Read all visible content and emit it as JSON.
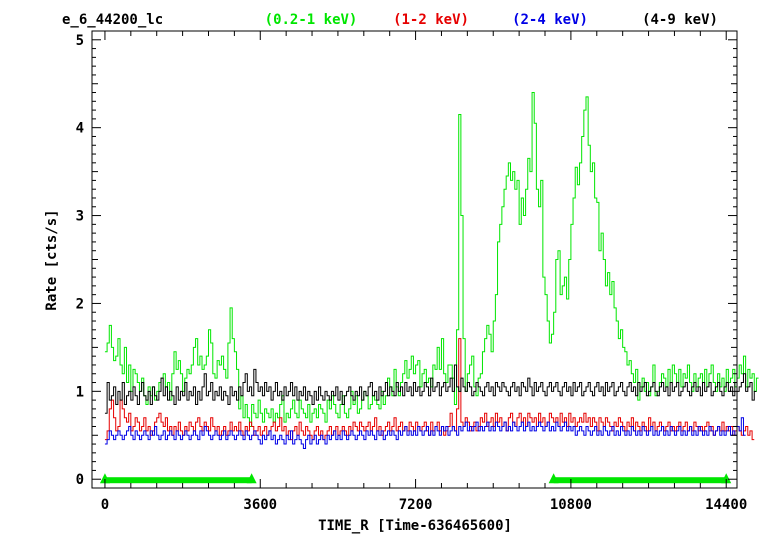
{
  "chart_data": {
    "type": "line",
    "title": "e_6_44200_lc",
    "xlabel": "TIME_R [Time-636465600]",
    "ylabel": "Rate [cts/s]",
    "xlim": [
      -300,
      14650
    ],
    "ylim": [
      -0.1,
      5.1
    ],
    "xticks": [
      0,
      3600,
      7200,
      10800,
      14400
    ],
    "xtick_labels": [
      "0",
      "3600",
      "7200",
      "10800",
      "14400"
    ],
    "yticks": [
      0,
      1,
      2,
      3,
      4,
      5
    ],
    "ytick_labels": [
      "0",
      "1",
      "2",
      "3",
      "4",
      "5"
    ],
    "grid": false,
    "legend_position": "top",
    "series": [
      {
        "name": "(0.2-1 keV)",
        "color": "#00e600",
        "step": 50,
        "values": [
          1.45,
          1.55,
          1.75,
          1.5,
          1.35,
          1.4,
          1.6,
          1.3,
          1.2,
          1.5,
          1.1,
          1.3,
          1.0,
          1.25,
          1.2,
          1.1,
          1.0,
          1.15,
          0.95,
          0.85,
          1.05,
          0.95,
          1.05,
          0.9,
          1.0,
          1.1,
          1.15,
          1.2,
          1.05,
          1.1,
          0.9,
          1.2,
          1.45,
          1.25,
          1.35,
          1.2,
          1.0,
          1.15,
          1.25,
          1.2,
          1.3,
          1.5,
          1.6,
          1.3,
          1.4,
          1.25,
          1.3,
          1.4,
          1.7,
          1.55,
          1.2,
          1.15,
          1.35,
          1.3,
          1.4,
          1.25,
          1.15,
          1.55,
          1.95,
          1.6,
          1.45,
          1.25,
          0.8,
          0.95,
          0.7,
          0.85,
          0.7,
          0.6,
          0.85,
          0.75,
          0.7,
          0.9,
          0.75,
          0.65,
          0.8,
          0.75,
          0.7,
          0.8,
          0.65,
          0.75,
          0.7,
          0.85,
          0.95,
          0.65,
          0.75,
          0.7,
          0.8,
          0.9,
          0.75,
          0.7,
          0.9,
          0.8,
          0.75,
          0.7,
          0.85,
          0.65,
          0.75,
          0.8,
          0.7,
          0.85,
          0.8,
          0.75,
          0.65,
          0.9,
          0.8,
          0.95,
          0.85,
          0.75,
          0.7,
          0.85,
          0.95,
          0.75,
          0.7,
          0.8,
          1.0,
          0.85,
          0.95,
          0.75,
          0.8,
          0.9,
          1.0,
          0.95,
          0.8,
          0.85,
          0.95,
          0.9,
          0.85,
          0.8,
          1.0,
          0.85,
          0.95,
          1.15,
          1.05,
          0.95,
          1.25,
          1.05,
          0.95,
          1.1,
          1.2,
          1.35,
          1.15,
          1.25,
          1.4,
          1.2,
          1.3,
          1.35,
          1.05,
          1.2,
          1.25,
          1.1,
          1.15,
          1.05,
          1.3,
          1.25,
          1.5,
          1.25,
          1.6,
          1.2,
          1.1,
          1.3,
          1.3,
          1.15,
          0.85,
          1.7,
          4.15,
          3.0,
          1.6,
          1.0,
          1.2,
          1.3,
          1.4,
          1.05,
          0.95,
          1.15,
          1.2,
          1.45,
          1.6,
          1.75,
          1.65,
          1.45,
          1.8,
          2.1,
          2.7,
          2.9,
          3.1,
          3.3,
          3.45,
          3.6,
          3.4,
          3.5,
          3.3,
          3.4,
          2.9,
          3.2,
          3.0,
          3.3,
          3.65,
          3.5,
          4.4,
          4.05,
          3.3,
          3.1,
          3.4,
          2.3,
          2.1,
          1.8,
          1.55,
          1.65,
          1.9,
          2.5,
          2.6,
          2.1,
          2.2,
          2.3,
          2.05,
          2.5,
          2.9,
          3.2,
          3.55,
          3.35,
          3.6,
          3.9,
          4.2,
          4.35,
          3.8,
          3.5,
          3.6,
          3.2,
          3.15,
          2.6,
          2.8,
          2.5,
          2.2,
          2.35,
          2.1,
          2.25,
          1.95,
          1.8,
          1.6,
          1.7,
          1.5,
          1.45,
          1.3,
          1.35,
          1.2,
          1.1,
          1.25,
          0.9,
          1.05,
          1.15,
          1.0,
          1.1,
          0.95,
          1.05,
          1.3,
          0.95,
          1.0,
          1.1,
          1.2,
          1.15,
          1.05,
          1.25,
          1.1,
          1.3,
          1.2,
          1.1,
          1.25,
          1.05,
          1.2,
          1.15,
          1.3,
          1.1,
          1.0,
          1.2,
          1.05,
          1.15,
          1.2,
          1.1,
          1.25,
          1.05,
          1.2,
          1.3,
          1.1,
          1.0,
          1.2,
          1.05,
          1.15,
          1.0,
          1.25,
          1.1,
          1.15,
          1.25,
          1.05,
          1.15,
          1.3,
          1.2,
          1.4,
          1.05,
          1.25,
          1.15,
          1.2,
          1.0,
          1.15
        ]
      },
      {
        "name": "(1-2 keV)",
        "color": "#e60000",
        "step": 50,
        "values": [
          0.45,
          0.55,
          0.8,
          0.9,
          0.7,
          0.55,
          0.6,
          0.9,
          0.8,
          0.7,
          0.65,
          0.75,
          0.55,
          0.6,
          0.7,
          0.65,
          0.55,
          0.6,
          0.7,
          0.55,
          0.6,
          0.5,
          0.55,
          0.65,
          0.7,
          0.75,
          0.65,
          0.6,
          0.7,
          0.55,
          0.6,
          0.5,
          0.6,
          0.55,
          0.65,
          0.55,
          0.5,
          0.6,
          0.55,
          0.65,
          0.6,
          0.55,
          0.65,
          0.7,
          0.6,
          0.55,
          0.65,
          0.6,
          0.55,
          0.7,
          0.6,
          0.55,
          0.6,
          0.5,
          0.55,
          0.6,
          0.5,
          0.55,
          0.65,
          0.55,
          0.6,
          0.55,
          0.65,
          0.55,
          0.5,
          0.6,
          0.55,
          0.65,
          0.6,
          0.5,
          0.55,
          0.6,
          0.5,
          0.55,
          0.6,
          0.5,
          0.55,
          0.6,
          0.65,
          0.55,
          0.6,
          0.7,
          0.55,
          0.6,
          0.5,
          0.55,
          0.45,
          0.55,
          0.6,
          0.5,
          0.65,
          0.55,
          0.5,
          0.6,
          0.55,
          0.5,
          0.45,
          0.55,
          0.6,
          0.5,
          0.55,
          0.45,
          0.5,
          0.55,
          0.6,
          0.5,
          0.55,
          0.6,
          0.5,
          0.55,
          0.6,
          0.55,
          0.5,
          0.6,
          0.55,
          0.65,
          0.6,
          0.55,
          0.65,
          0.6,
          0.55,
          0.6,
          0.65,
          0.55,
          0.6,
          0.7,
          0.55,
          0.6,
          0.5,
          0.55,
          0.6,
          0.65,
          0.55,
          0.6,
          0.7,
          0.55,
          0.6,
          0.65,
          0.55,
          0.6,
          0.55,
          0.65,
          0.6,
          0.55,
          0.65,
          0.6,
          0.55,
          0.6,
          0.65,
          0.55,
          0.5,
          0.65,
          0.55,
          0.6,
          0.65,
          0.55,
          0.6,
          0.5,
          0.55,
          0.6,
          0.75,
          0.6,
          0.55,
          0.8,
          1.6,
          0.65,
          0.6,
          0.7,
          0.65,
          0.55,
          0.6,
          0.65,
          0.55,
          0.6,
          0.7,
          0.65,
          0.75,
          0.6,
          0.65,
          0.7,
          0.6,
          0.75,
          0.65,
          0.7,
          0.6,
          0.65,
          0.55,
          0.7,
          0.75,
          0.65,
          0.6,
          0.7,
          0.75,
          0.65,
          0.7,
          0.6,
          0.75,
          0.7,
          0.65,
          0.7,
          0.6,
          0.75,
          0.65,
          0.7,
          0.6,
          0.65,
          0.75,
          0.7,
          0.65,
          0.7,
          0.6,
          0.75,
          0.65,
          0.7,
          0.6,
          0.75,
          0.65,
          0.7,
          0.6,
          0.65,
          0.7,
          0.65,
          0.75,
          0.65,
          0.7,
          0.6,
          0.7,
          0.65,
          0.55,
          0.7,
          0.65,
          0.6,
          0.7,
          0.65,
          0.6,
          0.55,
          0.65,
          0.6,
          0.7,
          0.65,
          0.6,
          0.55,
          0.65,
          0.6,
          0.7,
          0.55,
          0.65,
          0.6,
          0.55,
          0.65,
          0.6,
          0.55,
          0.7,
          0.6,
          0.65,
          0.55,
          0.6,
          0.65,
          0.6,
          0.55,
          0.6,
          0.65,
          0.55,
          0.6,
          0.55,
          0.6,
          0.65,
          0.55,
          0.6,
          0.65,
          0.55,
          0.6,
          0.55,
          0.65,
          0.6,
          0.55,
          0.6,
          0.55,
          0.6,
          0.65,
          0.55,
          0.6,
          0.5,
          0.55,
          0.6,
          0.55,
          0.65,
          0.55,
          0.6,
          0.55,
          0.6,
          0.5,
          0.55,
          0.6,
          0.55,
          0.5,
          0.55,
          0.6,
          0.5,
          0.55,
          0.45
        ]
      },
      {
        "name": "(2-4 keV)",
        "color": "#0000e6",
        "step": 50,
        "values": [
          0.4,
          0.45,
          0.55,
          0.5,
          0.45,
          0.5,
          0.55,
          0.5,
          0.45,
          0.5,
          0.55,
          0.6,
          0.5,
          0.45,
          0.55,
          0.5,
          0.45,
          0.5,
          0.55,
          0.5,
          0.45,
          0.55,
          0.5,
          0.6,
          0.5,
          0.45,
          0.5,
          0.55,
          0.45,
          0.5,
          0.55,
          0.5,
          0.45,
          0.55,
          0.5,
          0.45,
          0.5,
          0.55,
          0.5,
          0.45,
          0.5,
          0.55,
          0.5,
          0.45,
          0.55,
          0.5,
          0.6,
          0.55,
          0.5,
          0.45,
          0.5,
          0.55,
          0.5,
          0.45,
          0.5,
          0.55,
          0.45,
          0.5,
          0.55,
          0.5,
          0.45,
          0.5,
          0.55,
          0.5,
          0.45,
          0.55,
          0.5,
          0.45,
          0.5,
          0.55,
          0.5,
          0.45,
          0.4,
          0.5,
          0.45,
          0.5,
          0.55,
          0.45,
          0.5,
          0.4,
          0.45,
          0.5,
          0.45,
          0.4,
          0.5,
          0.45,
          0.55,
          0.4,
          0.45,
          0.5,
          0.45,
          0.4,
          0.35,
          0.45,
          0.5,
          0.4,
          0.45,
          0.5,
          0.4,
          0.45,
          0.5,
          0.45,
          0.4,
          0.5,
          0.45,
          0.5,
          0.55,
          0.45,
          0.5,
          0.45,
          0.55,
          0.5,
          0.45,
          0.5,
          0.55,
          0.5,
          0.45,
          0.5,
          0.55,
          0.5,
          0.45,
          0.55,
          0.5,
          0.55,
          0.5,
          0.45,
          0.55,
          0.5,
          0.55,
          0.45,
          0.5,
          0.55,
          0.5,
          0.55,
          0.5,
          0.45,
          0.55,
          0.5,
          0.55,
          0.6,
          0.5,
          0.55,
          0.5,
          0.55,
          0.5,
          0.6,
          0.55,
          0.5,
          0.55,
          0.6,
          0.5,
          0.55,
          0.5,
          0.6,
          0.55,
          0.5,
          0.6,
          0.55,
          0.6,
          0.5,
          0.55,
          0.6,
          0.55,
          0.5,
          0.6,
          0.55,
          0.6,
          0.65,
          0.55,
          0.6,
          0.55,
          0.6,
          0.65,
          0.55,
          0.6,
          0.55,
          0.6,
          0.65,
          0.55,
          0.6,
          0.55,
          0.65,
          0.6,
          0.55,
          0.6,
          0.65,
          0.55,
          0.6,
          0.55,
          0.65,
          0.6,
          0.55,
          0.6,
          0.65,
          0.55,
          0.6,
          0.65,
          0.55,
          0.6,
          0.55,
          0.6,
          0.65,
          0.6,
          0.55,
          0.6,
          0.65,
          0.55,
          0.6,
          0.55,
          0.65,
          0.6,
          0.55,
          0.6,
          0.65,
          0.55,
          0.6,
          0.55,
          0.6,
          0.5,
          0.55,
          0.6,
          0.55,
          0.5,
          0.6,
          0.55,
          0.5,
          0.55,
          0.6,
          0.5,
          0.55,
          0.5,
          0.6,
          0.55,
          0.5,
          0.55,
          0.6,
          0.5,
          0.55,
          0.5,
          0.6,
          0.55,
          0.5,
          0.55,
          0.5,
          0.6,
          0.55,
          0.5,
          0.55,
          0.5,
          0.6,
          0.55,
          0.5,
          0.55,
          0.6,
          0.5,
          0.55,
          0.5,
          0.55,
          0.6,
          0.5,
          0.55,
          0.5,
          0.6,
          0.55,
          0.5,
          0.55,
          0.6,
          0.5,
          0.55,
          0.5,
          0.55,
          0.6,
          0.5,
          0.55,
          0.5,
          0.6,
          0.55,
          0.5,
          0.55,
          0.5,
          0.6,
          0.55,
          0.5,
          0.55,
          0.6,
          0.5,
          0.55,
          0.5,
          0.55,
          0.6,
          0.5,
          0.55,
          0.5,
          0.6,
          0.55,
          0.7,
          0.5
        ]
      },
      {
        "name": "(4-9 keV)",
        "color": "#000000",
        "step": 50,
        "values": [
          0.75,
          1.1,
          0.9,
          0.95,
          1.05,
          0.85,
          1.0,
          0.9,
          1.1,
          0.85,
          0.95,
          1.0,
          0.9,
          1.05,
          0.95,
          0.85,
          1.0,
          1.1,
          0.95,
          0.9,
          1.0,
          0.85,
          1.05,
          0.95,
          0.9,
          1.0,
          1.15,
          0.95,
          1.05,
          0.9,
          1.0,
          0.95,
          0.85,
          1.05,
          0.9,
          1.0,
          0.95,
          1.1,
          0.9,
          1.0,
          0.95,
          1.05,
          0.85,
          1.0,
          0.9,
          1.05,
          1.2,
          0.95,
          1.0,
          1.1,
          0.9,
          1.0,
          0.95,
          1.05,
          0.9,
          1.0,
          0.95,
          0.85,
          1.05,
          0.95,
          1.0,
          0.9,
          1.05,
          0.95,
          1.1,
          1.2,
          1.0,
          1.05,
          0.95,
          1.25,
          1.1,
          1.0,
          1.05,
          0.95,
          1.1,
          1.0,
          1.05,
          0.9,
          1.0,
          1.1,
          0.95,
          1.0,
          0.9,
          1.05,
          0.95,
          1.0,
          1.1,
          0.95,
          1.05,
          0.9,
          1.0,
          0.95,
          1.05,
          0.9,
          1.0,
          0.95,
          0.85,
          1.0,
          0.9,
          1.05,
          0.95,
          0.9,
          1.0,
          0.95,
          0.9,
          1.0,
          0.95,
          1.05,
          0.9,
          1.0,
          0.85,
          0.95,
          1.0,
          1.05,
          0.95,
          0.9,
          1.0,
          0.95,
          1.05,
          0.9,
          1.0,
          0.95,
          1.05,
          1.1,
          0.95,
          1.0,
          0.9,
          1.05,
          0.95,
          1.0,
          1.1,
          0.95,
          1.05,
          1.0,
          0.95,
          1.1,
          1.0,
          1.05,
          0.95,
          1.1,
          1.0,
          1.05,
          0.95,
          1.1,
          1.0,
          1.05,
          0.95,
          1.0,
          1.1,
          1.05,
          0.95,
          1.15,
          1.0,
          1.05,
          1.1,
          0.95,
          1.05,
          1.1,
          1.0,
          1.05,
          1.15,
          1.0,
          1.3,
          1.05,
          1.0,
          1.15,
          1.05,
          1.0,
          1.1,
          1.05,
          0.95,
          1.0,
          1.1,
          1.05,
          1.0,
          0.95,
          1.05,
          1.1,
          1.0,
          1.05,
          0.95,
          1.1,
          1.05,
          1.0,
          1.1,
          1.05,
          1.0,
          0.95,
          1.05,
          1.1,
          1.0,
          1.05,
          0.95,
          1.1,
          1.05,
          1.0,
          1.15,
          1.05,
          0.95,
          1.1,
          1.0,
          1.05,
          1.1,
          1.0,
          0.95,
          1.05,
          1.1,
          1.0,
          1.05,
          1.1,
          1.0,
          0.95,
          1.05,
          1.1,
          1.0,
          1.05,
          0.95,
          1.1,
          1.0,
          1.05,
          1.1,
          0.95,
          1.0,
          1.05,
          1.1,
          1.0,
          0.95,
          1.05,
          1.1,
          1.0,
          1.05,
          0.95,
          1.1,
          1.0,
          1.05,
          1.1,
          0.95,
          1.0,
          1.05,
          1.1,
          1.0,
          0.95,
          1.05,
          1.1,
          1.0,
          1.05,
          0.95,
          1.1,
          1.0,
          1.05,
          1.1,
          0.95,
          1.0,
          1.05,
          1.1,
          1.0,
          0.95,
          1.05,
          1.1,
          1.0,
          1.05,
          0.95,
          1.1,
          1.0,
          1.05,
          1.1,
          0.95,
          1.0,
          1.05,
          1.1,
          1.0,
          0.95,
          1.05,
          1.1,
          1.0,
          1.05,
          0.95,
          1.1,
          1.0,
          1.05,
          1.1,
          0.95,
          1.0,
          1.05,
          1.1,
          1.0,
          0.95,
          1.05,
          1.1,
          1.0,
          1.05,
          0.95,
          1.1,
          1.0,
          1.05,
          1.1,
          1.2,
          1.0,
          1.05,
          1.1,
          0.9,
          1.0
        ]
      }
    ],
    "gti_intervals": [
      [
        0,
        3400
      ],
      [
        10400,
        14400
      ]
    ],
    "gti_color": "#00e600"
  }
}
